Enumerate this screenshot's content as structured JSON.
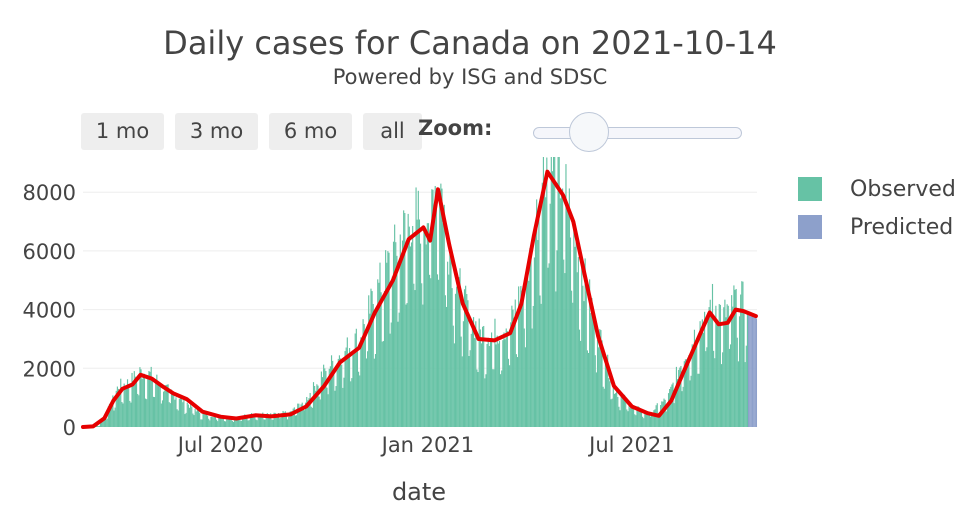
{
  "title": "Daily cases for Canada on 2021-10-14",
  "subtitle": "Powered by ISG and SDSC",
  "controls": {
    "range_buttons": [
      "1 mo",
      "3 mo",
      "6 mo",
      "all"
    ],
    "zoom_label": "Zoom:",
    "zoom_level": 0.25
  },
  "legend": {
    "observed": "Observed",
    "predicted": "Predicted"
  },
  "colors": {
    "observed": "#66c2a5",
    "predicted": "#8da0cb",
    "average": "#e60000",
    "grid": "#eeeeee"
  },
  "chart_data": {
    "type": "bar",
    "xlabel": "date",
    "x_ticks": [
      "Jul 2020",
      "Jan 2021",
      "Jul 2021"
    ],
    "y_ticks": [
      "0",
      "2000",
      "4000",
      "6000",
      "8000"
    ],
    "xlim": [
      "2020-03-01",
      "2021-10-20"
    ],
    "ylim": [
      0,
      9200
    ],
    "grid": true,
    "legend_position": "right",
    "series": [
      {
        "name": "Observed",
        "kind": "bar",
        "points": [
          [
            "2020-03-01",
            0
          ],
          [
            "2020-03-15",
            60
          ],
          [
            "2020-03-25",
            700
          ],
          [
            "2020-04-01",
            1300
          ],
          [
            "2020-04-10",
            1400
          ],
          [
            "2020-04-20",
            1750
          ],
          [
            "2020-05-01",
            1650
          ],
          [
            "2020-05-10",
            1300
          ],
          [
            "2020-05-20",
            1050
          ],
          [
            "2020-06-01",
            750
          ],
          [
            "2020-06-15",
            420
          ],
          [
            "2020-07-01",
            330
          ],
          [
            "2020-07-15",
            300
          ],
          [
            "2020-08-01",
            420
          ],
          [
            "2020-08-15",
            380
          ],
          [
            "2020-09-01",
            480
          ],
          [
            "2020-09-15",
            900
          ],
          [
            "2020-10-01",
            1800
          ],
          [
            "2020-10-15",
            2300
          ],
          [
            "2020-11-01",
            2900
          ],
          [
            "2020-11-15",
            4200
          ],
          [
            "2020-12-01",
            5500
          ],
          [
            "2020-12-15",
            6600
          ],
          [
            "2021-01-01",
            6800
          ],
          [
            "2021-01-10",
            8200
          ],
          [
            "2021-01-20",
            5500
          ],
          [
            "2021-02-01",
            4000
          ],
          [
            "2021-02-15",
            3000
          ],
          [
            "2021-03-01",
            3000
          ],
          [
            "2021-03-15",
            3300
          ],
          [
            "2021-04-01",
            5200
          ],
          [
            "2021-04-15",
            8600
          ],
          [
            "2021-05-01",
            7800
          ],
          [
            "2021-05-15",
            5300
          ],
          [
            "2021-06-01",
            3000
          ],
          [
            "2021-06-15",
            1200
          ],
          [
            "2021-07-01",
            650
          ],
          [
            "2021-07-15",
            430
          ],
          [
            "2021-08-01",
            900
          ],
          [
            "2021-08-15",
            2200
          ],
          [
            "2021-09-01",
            3400
          ],
          [
            "2021-09-10",
            4000
          ],
          [
            "2021-09-20",
            3550
          ],
          [
            "2021-10-01",
            4100
          ],
          [
            "2021-10-11",
            3900
          ]
        ]
      },
      {
        "name": "Predicted",
        "kind": "bar",
        "points": [
          [
            "2021-10-12",
            3850
          ],
          [
            "2021-10-13",
            3820
          ],
          [
            "2021-10-14",
            3800
          ],
          [
            "2021-10-15",
            3780
          ],
          [
            "2021-10-16",
            3760
          ],
          [
            "2021-10-17",
            3740
          ],
          [
            "2021-10-18",
            3720
          ],
          [
            "2021-10-19",
            3700
          ]
        ]
      },
      {
        "name": "",
        "kind": "line",
        "points": [
          [
            "2020-03-01",
            0
          ],
          [
            "2020-03-10",
            20
          ],
          [
            "2020-03-20",
            300
          ],
          [
            "2020-03-28",
            900
          ],
          [
            "2020-04-05",
            1300
          ],
          [
            "2020-04-14",
            1450
          ],
          [
            "2020-04-21",
            1780
          ],
          [
            "2020-05-01",
            1650
          ],
          [
            "2020-05-10",
            1400
          ],
          [
            "2020-05-20",
            1150
          ],
          [
            "2020-06-01",
            950
          ],
          [
            "2020-06-15",
            520
          ],
          [
            "2020-07-01",
            350
          ],
          [
            "2020-07-15",
            290
          ],
          [
            "2020-08-01",
            400
          ],
          [
            "2020-08-15",
            360
          ],
          [
            "2020-09-01",
            430
          ],
          [
            "2020-09-15",
            700
          ],
          [
            "2020-10-01",
            1400
          ],
          [
            "2020-10-15",
            2200
          ],
          [
            "2020-11-01",
            2700
          ],
          [
            "2020-11-15",
            3900
          ],
          [
            "2020-12-01",
            5000
          ],
          [
            "2020-12-15",
            6400
          ],
          [
            "2020-12-28",
            6800
          ],
          [
            "2021-01-03",
            6350
          ],
          [
            "2021-01-10",
            8100
          ],
          [
            "2021-01-20",
            6200
          ],
          [
            "2021-02-01",
            4200
          ],
          [
            "2021-02-15",
            3000
          ],
          [
            "2021-03-01",
            2950
          ],
          [
            "2021-03-15",
            3200
          ],
          [
            "2021-03-25",
            4200
          ],
          [
            "2021-04-05",
            6500
          ],
          [
            "2021-04-17",
            8700
          ],
          [
            "2021-05-01",
            7900
          ],
          [
            "2021-05-10",
            7000
          ],
          [
            "2021-05-20",
            5200
          ],
          [
            "2021-06-01",
            3100
          ],
          [
            "2021-06-15",
            1400
          ],
          [
            "2021-07-01",
            700
          ],
          [
            "2021-07-15",
            470
          ],
          [
            "2021-07-25",
            380
          ],
          [
            "2021-08-05",
            900
          ],
          [
            "2021-08-15",
            1800
          ],
          [
            "2021-09-01",
            3300
          ],
          [
            "2021-09-08",
            3900
          ],
          [
            "2021-09-16",
            3500
          ],
          [
            "2021-09-24",
            3550
          ],
          [
            "2021-10-01",
            4000
          ],
          [
            "2021-10-08",
            3950
          ],
          [
            "2021-10-19",
            3780
          ]
        ]
      }
    ]
  }
}
